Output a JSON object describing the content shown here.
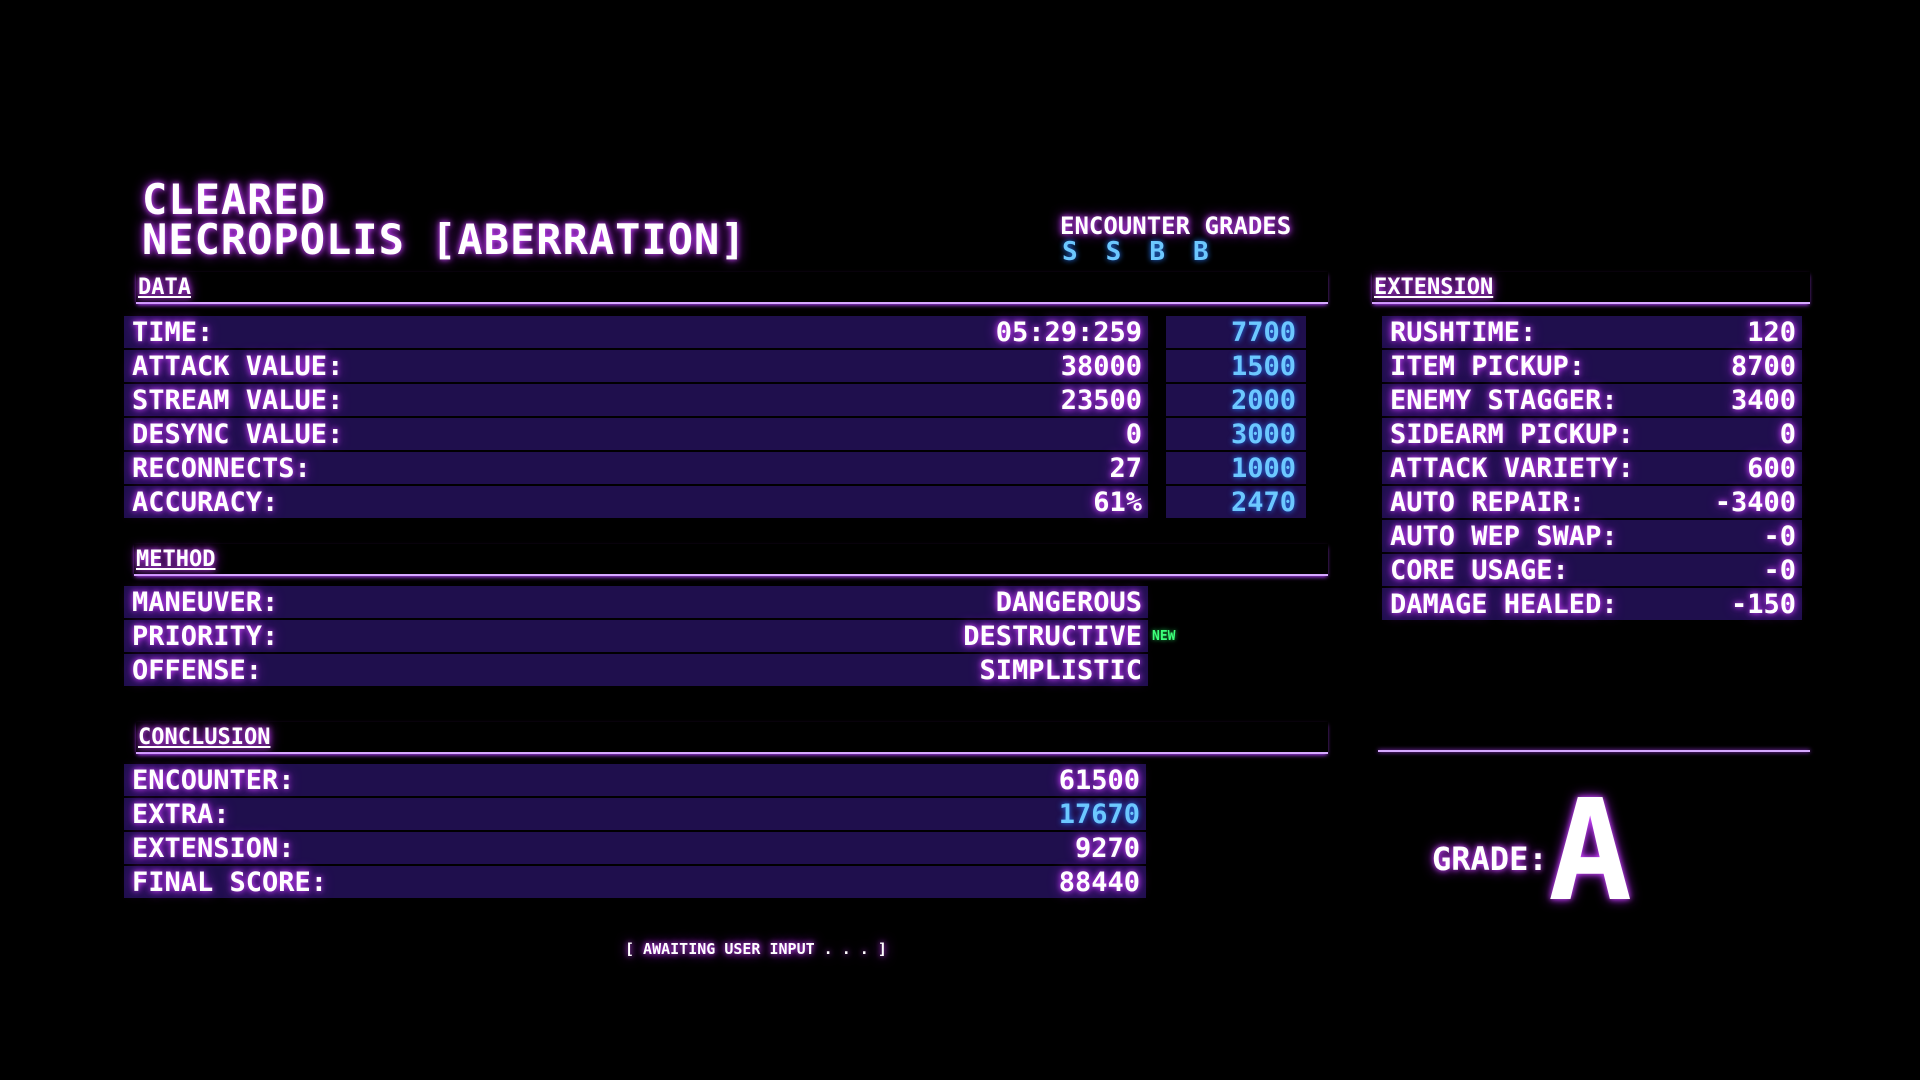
{
  "header": {
    "status": "CLEARED",
    "stage": "NECROPOLIS [ABERRATION]",
    "encounter_grades_label": "ENCOUNTER GRADES",
    "encounter_grades": [
      "S",
      "S",
      "B",
      "B"
    ]
  },
  "data_section": {
    "title": "DATA",
    "rows": [
      {
        "label": "TIME:",
        "value": "05:29:259",
        "bonus": "7700"
      },
      {
        "label": "ATTACK VALUE:",
        "value": "38000",
        "bonus": "1500"
      },
      {
        "label": "STREAM VALUE:",
        "value": "23500",
        "bonus": "2000"
      },
      {
        "label": "DESYNC VALUE:",
        "value": "0",
        "bonus": "3000"
      },
      {
        "label": "RECONNECTS:",
        "value": "27",
        "bonus": "1000"
      },
      {
        "label": "ACCURACY:",
        "value": "61%",
        "bonus": "2470"
      }
    ]
  },
  "method_section": {
    "title": "METHOD",
    "rows": [
      {
        "label": "MANEUVER:",
        "value": "DANGEROUS"
      },
      {
        "label": "PRIORITY:",
        "value": "DESTRUCTIVE",
        "badge": "NEW"
      },
      {
        "label": "OFFENSE:",
        "value": "SIMPLISTIC"
      }
    ]
  },
  "conclusion_section": {
    "title": "CONCLUSION",
    "rows": [
      {
        "label": "ENCOUNTER:",
        "value": "61500"
      },
      {
        "label": "EXTRA:",
        "value": "17670"
      },
      {
        "label": "EXTENSION:",
        "value": "9270"
      },
      {
        "label": "FINAL SCORE:",
        "value": "88440"
      }
    ]
  },
  "extension_section": {
    "title": "EXTENSION",
    "rows": [
      {
        "label": "RUSHTIME:",
        "value": "120"
      },
      {
        "label": "ITEM PICKUP:",
        "value": "8700"
      },
      {
        "label": "ENEMY STAGGER:",
        "value": "3400"
      },
      {
        "label": "SIDEARM PICKUP:",
        "value": "0"
      },
      {
        "label": "ATTACK VARIETY:",
        "value": "600"
      },
      {
        "label": "AUTO REPAIR:",
        "value": "-3400"
      },
      {
        "label": "AUTO WEP SWAP:",
        "value": "-0"
      },
      {
        "label": "CORE USAGE:",
        "value": "-0"
      },
      {
        "label": "DAMAGE HEALED:",
        "value": "-150"
      }
    ]
  },
  "grade": {
    "label": "GRADE:",
    "value": "A"
  },
  "footer": {
    "prompt": "[ AWAITING USER INPUT . . . ]"
  },
  "colors": {
    "background": "#000000",
    "row_bg": "#1f0f4d",
    "glow": "#d04cff",
    "accent_blue": "#6cc8ff",
    "new_green": "#3dff7a"
  }
}
